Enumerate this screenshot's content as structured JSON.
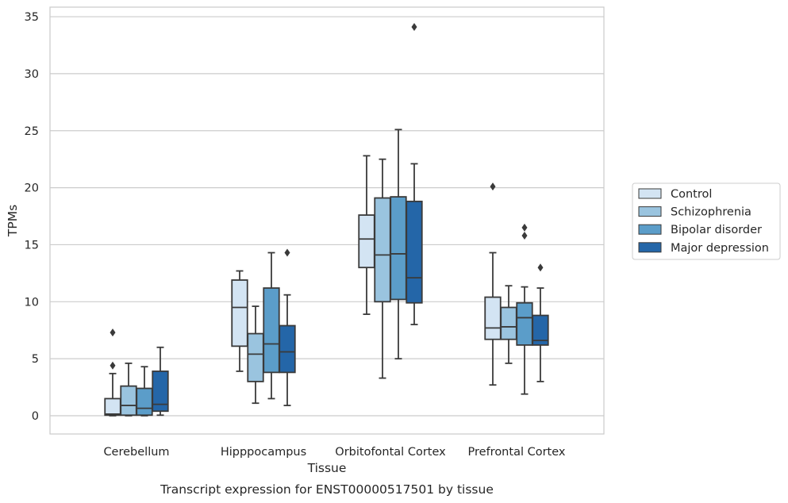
{
  "caption": "Transcript expression for ENST00000517501 by tissue",
  "chart_data": {
    "type": "box",
    "title": "",
    "xlabel": "Tissue",
    "ylabel": "TPMs",
    "ylim": [
      -1.6,
      36
    ],
    "yticks": [
      0,
      5,
      10,
      15,
      20,
      25,
      30,
      35
    ],
    "grid": "horizontal",
    "legend_position": "right",
    "categories": [
      "Cerebellum",
      "Hipppocampus",
      "Orbitofontal Cortex",
      "Prefrontal Cortex"
    ],
    "series": [
      {
        "name": "Control",
        "color": "#d3e4f3",
        "boxes": [
          {
            "whisker_low": 0.0,
            "q1": 0.05,
            "median": 0.15,
            "q3": 1.5,
            "whisker_high": 3.7,
            "outliers": [
              4.4,
              7.3
            ]
          },
          {
            "whisker_low": 3.9,
            "q1": 6.1,
            "median": 9.5,
            "q3": 11.9,
            "whisker_high": 12.7,
            "outliers": []
          },
          {
            "whisker_low": 8.9,
            "q1": 13.0,
            "median": 15.5,
            "q3": 17.6,
            "whisker_high": 22.8,
            "outliers": []
          },
          {
            "whisker_low": 2.7,
            "q1": 6.7,
            "median": 7.7,
            "q3": 10.4,
            "whisker_high": 14.3,
            "outliers": [
              20.1
            ]
          }
        ]
      },
      {
        "name": "Schizophrenia",
        "color": "#9ac4df",
        "boxes": [
          {
            "whisker_low": 0.0,
            "q1": 0.05,
            "median": 0.9,
            "q3": 2.6,
            "whisker_high": 4.6,
            "outliers": []
          },
          {
            "whisker_low": 1.1,
            "q1": 3.0,
            "median": 5.4,
            "q3": 7.2,
            "whisker_high": 9.6,
            "outliers": []
          },
          {
            "whisker_low": 3.3,
            "q1": 10.0,
            "median": 14.1,
            "q3": 19.1,
            "whisker_high": 22.5,
            "outliers": []
          },
          {
            "whisker_low": 4.6,
            "q1": 6.7,
            "median": 7.8,
            "q3": 9.5,
            "whisker_high": 11.4,
            "outliers": []
          }
        ]
      },
      {
        "name": "Bipolar disorder",
        "color": "#5b9dc9",
        "boxes": [
          {
            "whisker_low": 0.0,
            "q1": 0.05,
            "median": 0.65,
            "q3": 2.4,
            "whisker_high": 4.3,
            "outliers": []
          },
          {
            "whisker_low": 1.5,
            "q1": 3.8,
            "median": 6.3,
            "q3": 11.2,
            "whisker_high": 14.3,
            "outliers": []
          },
          {
            "whisker_low": 5.0,
            "q1": 10.2,
            "median": 14.2,
            "q3": 19.2,
            "whisker_high": 25.1,
            "outliers": []
          },
          {
            "whisker_low": 1.9,
            "q1": 6.2,
            "median": 8.6,
            "q3": 9.9,
            "whisker_high": 11.3,
            "outliers": [
              15.8,
              16.5
            ]
          }
        ]
      },
      {
        "name": "Major depression",
        "color": "#2466a8",
        "boxes": [
          {
            "whisker_low": 0.05,
            "q1": 0.4,
            "median": 1.0,
            "q3": 3.9,
            "whisker_high": 6.0,
            "outliers": []
          },
          {
            "whisker_low": 0.9,
            "q1": 3.8,
            "median": 5.6,
            "q3": 7.9,
            "whisker_high": 10.6,
            "outliers": [
              14.3
            ]
          },
          {
            "whisker_low": 8.0,
            "q1": 9.9,
            "median": 12.1,
            "q3": 18.8,
            "whisker_high": 22.1,
            "outliers": [
              34.1
            ]
          },
          {
            "whisker_low": 3.0,
            "q1": 6.2,
            "median": 6.6,
            "q3": 8.8,
            "whisker_high": 11.2,
            "outliers": [
              13.0
            ]
          }
        ]
      }
    ]
  },
  "colors": {
    "box_edge": "#3a3a3a",
    "grid": "#cccccc",
    "frame": "#cccccc",
    "text": "#262626"
  }
}
